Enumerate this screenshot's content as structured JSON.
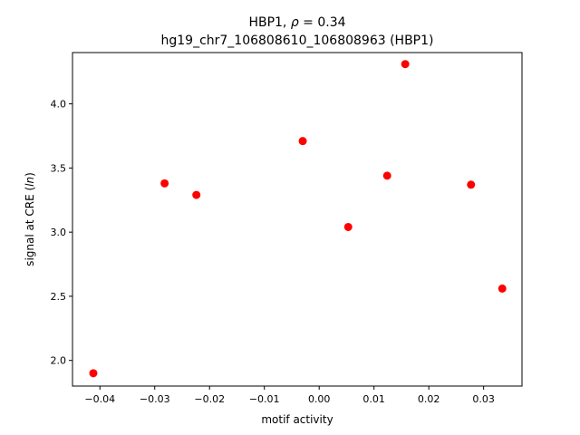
{
  "chart_data": {
    "type": "scatter",
    "title_line1_prefix": "HBP1, ",
    "title_line1_rho": "ρ",
    "title_line1_suffix": " = 0.34",
    "title_line2": "hg19_chr7_106808610_106808963 (HBP1)",
    "xlabel": "motif activity",
    "ylabel_prefix": "signal at CRE (",
    "ylabel_italic": "ln",
    "ylabel_suffix": ")",
    "xlim": [
      -0.045,
      0.037
    ],
    "ylim": [
      1.8,
      4.4
    ],
    "xticks": [
      -0.04,
      -0.03,
      -0.02,
      -0.01,
      0.0,
      0.01,
      0.02,
      0.03
    ],
    "xtick_labels": [
      "−0.04",
      "−0.03",
      "−0.02",
      "−0.01",
      "0.00",
      "0.01",
      "0.02",
      "0.03"
    ],
    "yticks": [
      2.0,
      2.5,
      3.0,
      3.5,
      4.0
    ],
    "ytick_labels": [
      "2.0",
      "2.5",
      "3.0",
      "3.5",
      "4.0"
    ],
    "grid": false,
    "marker_color": "#ff0000",
    "points": [
      {
        "x": -0.0412,
        "y": 1.9
      },
      {
        "x": -0.0282,
        "y": 3.38
      },
      {
        "x": -0.0224,
        "y": 3.29
      },
      {
        "x": -0.003,
        "y": 3.71
      },
      {
        "x": 0.0053,
        "y": 3.04
      },
      {
        "x": 0.0124,
        "y": 3.44
      },
      {
        "x": 0.0157,
        "y": 4.31
      },
      {
        "x": 0.0277,
        "y": 3.37
      },
      {
        "x": 0.0334,
        "y": 2.56
      }
    ]
  }
}
